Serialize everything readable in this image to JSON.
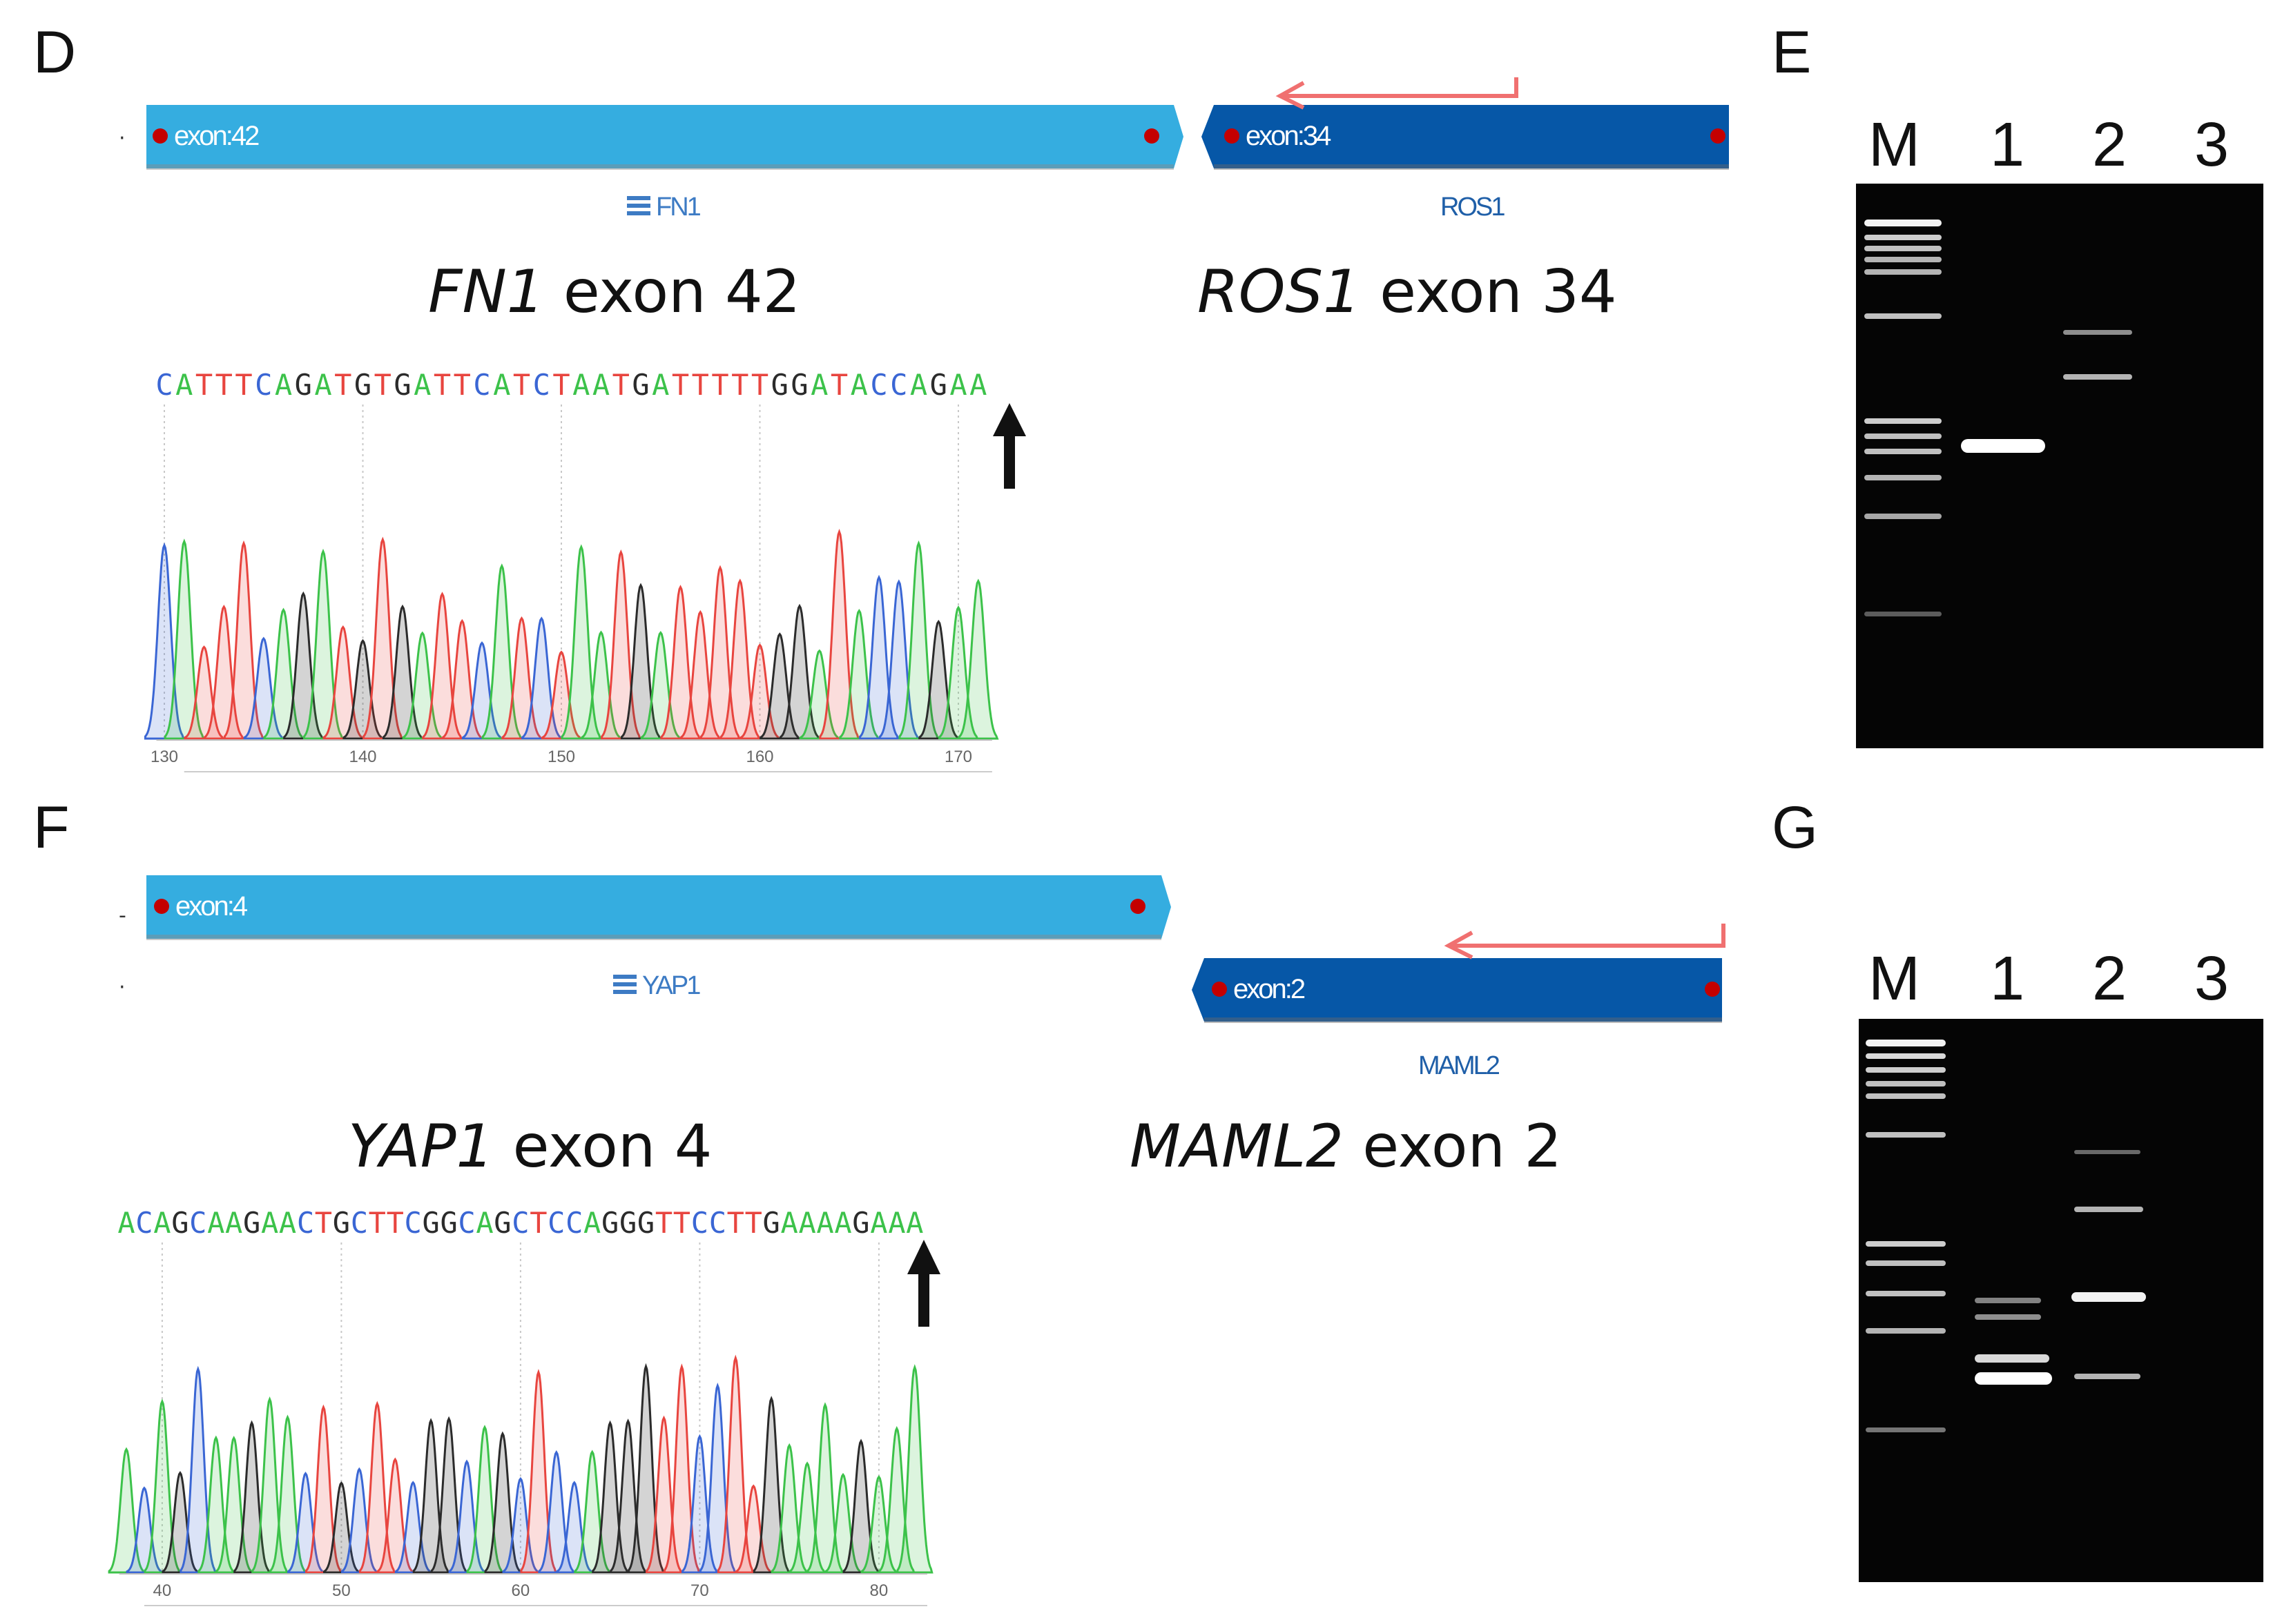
{
  "colors": {
    "A": "#3cc24a",
    "C": "#3a66d4",
    "G": "#2b2b2b",
    "T": "#e8453f",
    "exon_light": "#35ade0",
    "exon_dark": "#0657a7",
    "arrow_red": "#f07070"
  },
  "panel_d": {
    "letter": "D",
    "exon_left": "exon:42",
    "exon_right": "exon:34",
    "gene_left": "FN1",
    "gene_right": "ROS1",
    "caption_left_gene": "FN1",
    "caption_left_rest": " exon 42",
    "caption_right_gene": "ROS1",
    "caption_right_rest": " exon 34",
    "bases": "CATTTCAGATGTGATTCATCTAATGATTTTTGGATACCAGAA",
    "ticks": [
      "130",
      "140",
      "150",
      "160",
      "170"
    ],
    "junction_index": 21
  },
  "panel_f": {
    "letter": "F",
    "exon_left": "exon:4",
    "exon_right": "exon:2",
    "gene_left": "YAP1",
    "gene_right": "MAML2",
    "caption_left_gene": "YAP1",
    "caption_left_rest": " exon 4",
    "caption_right_gene": "MAML2",
    "caption_right_rest": " exon 2",
    "bases": "ACAGCAAGAACTGCTTCGGCAGCTCCAGGGTTCCTTGAAAAGAAA",
    "ticks": [
      "40",
      "50",
      "60",
      "70",
      "80"
    ],
    "junction_index": 22
  },
  "panel_e": {
    "letter": "E",
    "lanes": [
      "M",
      "1",
      "2",
      "3"
    ]
  },
  "panel_g": {
    "letter": "G",
    "lanes": [
      "M",
      "1",
      "2",
      "3"
    ]
  }
}
